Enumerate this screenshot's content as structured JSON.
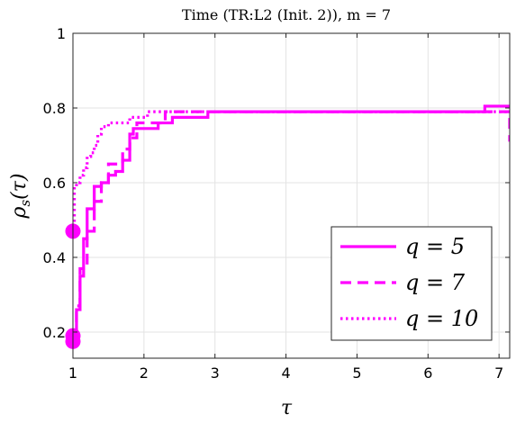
{
  "chart_data": {
    "type": "line",
    "title": "Time (TR:L2 (Init. 2)), m = 7",
    "xlabel": "τ",
    "ylabel": "ρ_s(τ)",
    "xlim": [
      1,
      7.15
    ],
    "ylim": [
      0.13,
      1.0
    ],
    "xticks": [
      "1",
      "2",
      "3",
      "4",
      "5",
      "6",
      "7"
    ],
    "yticks": [
      "0.2",
      "0.4",
      "0.6",
      "0.8",
      "1"
    ],
    "grid": true,
    "legend_position": "lower-right",
    "color": "#ff00ff",
    "series": [
      {
        "name": "q = 5",
        "style": "solid",
        "marker_start": 0.175,
        "x": [
          1.0,
          1.05,
          1.1,
          1.15,
          1.2,
          1.3,
          1.4,
          1.5,
          1.6,
          1.7,
          1.8,
          1.85,
          2.2,
          2.4,
          2.9,
          6.8,
          7.15
        ],
        "y": [
          0.175,
          0.26,
          0.35,
          0.45,
          0.53,
          0.59,
          0.6,
          0.62,
          0.63,
          0.66,
          0.73,
          0.745,
          0.76,
          0.775,
          0.79,
          0.805,
          0.805
        ]
      },
      {
        "name": "q = 7",
        "style": "dashed",
        "marker_start": 0.19,
        "x": [
          1.0,
          1.05,
          1.1,
          1.2,
          1.3,
          1.4,
          1.5,
          1.7,
          1.8,
          1.9,
          2.3,
          7.1,
          7.15
        ],
        "y": [
          0.19,
          0.27,
          0.37,
          0.47,
          0.55,
          0.6,
          0.65,
          0.69,
          0.72,
          0.76,
          0.79,
          0.79,
          0.71
        ]
      },
      {
        "name": "q = 10",
        "style": "dotted",
        "marker_start": 0.47,
        "x": [
          1.0,
          1.02,
          1.05,
          1.1,
          1.15,
          1.2,
          1.25,
          1.3,
          1.35,
          1.4,
          1.5,
          1.8,
          2.05,
          7.15
        ],
        "y": [
          0.47,
          0.59,
          0.6,
          0.62,
          0.64,
          0.67,
          0.68,
          0.7,
          0.73,
          0.75,
          0.76,
          0.775,
          0.79,
          0.79
        ]
      }
    ]
  }
}
